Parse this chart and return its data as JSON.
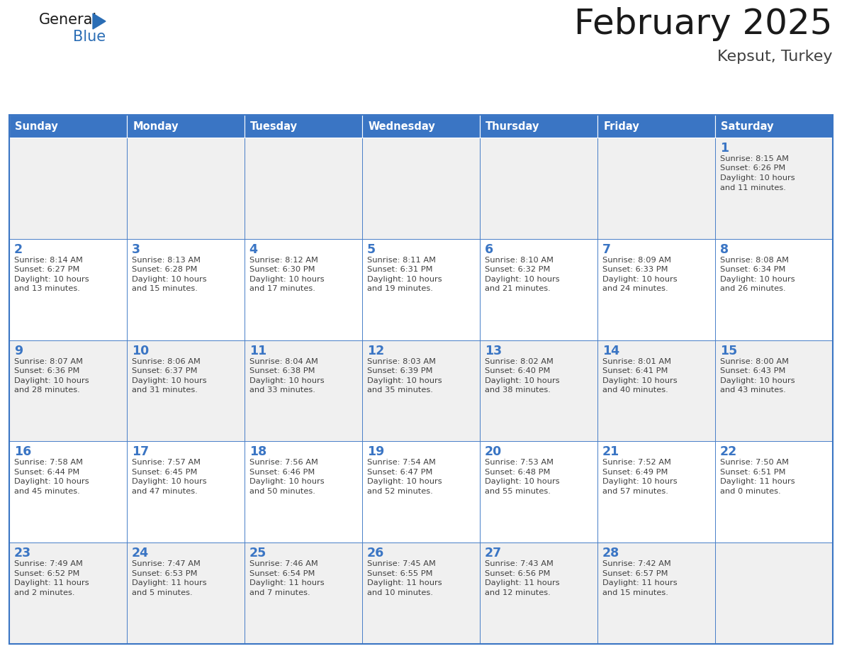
{
  "title": "February 2025",
  "subtitle": "Kepsut, Turkey",
  "days_of_week": [
    "Sunday",
    "Monday",
    "Tuesday",
    "Wednesday",
    "Thursday",
    "Friday",
    "Saturday"
  ],
  "header_bg": "#3A75C4",
  "header_text": "#FFFFFF",
  "cell_bg_odd": "#F0F0F0",
  "cell_bg_even": "#FFFFFF",
  "border_color": "#3A75C4",
  "day_number_color": "#3A75C4",
  "cell_text_color": "#404040",
  "title_color": "#1A1A1A",
  "subtitle_color": "#404040",
  "logo_general_color": "#1A1A1A",
  "logo_blue_color": "#2A6DB5",
  "calendar_data": {
    "1": {
      "sunrise": "8:15 AM",
      "sunset": "6:26 PM",
      "daylight_h": "10 hours",
      "daylight_m": "and 11 minutes."
    },
    "2": {
      "sunrise": "8:14 AM",
      "sunset": "6:27 PM",
      "daylight_h": "10 hours",
      "daylight_m": "and 13 minutes."
    },
    "3": {
      "sunrise": "8:13 AM",
      "sunset": "6:28 PM",
      "daylight_h": "10 hours",
      "daylight_m": "and 15 minutes."
    },
    "4": {
      "sunrise": "8:12 AM",
      "sunset": "6:30 PM",
      "daylight_h": "10 hours",
      "daylight_m": "and 17 minutes."
    },
    "5": {
      "sunrise": "8:11 AM",
      "sunset": "6:31 PM",
      "daylight_h": "10 hours",
      "daylight_m": "and 19 minutes."
    },
    "6": {
      "sunrise": "8:10 AM",
      "sunset": "6:32 PM",
      "daylight_h": "10 hours",
      "daylight_m": "and 21 minutes."
    },
    "7": {
      "sunrise": "8:09 AM",
      "sunset": "6:33 PM",
      "daylight_h": "10 hours",
      "daylight_m": "and 24 minutes."
    },
    "8": {
      "sunrise": "8:08 AM",
      "sunset": "6:34 PM",
      "daylight_h": "10 hours",
      "daylight_m": "and 26 minutes."
    },
    "9": {
      "sunrise": "8:07 AM",
      "sunset": "6:36 PM",
      "daylight_h": "10 hours",
      "daylight_m": "and 28 minutes."
    },
    "10": {
      "sunrise": "8:06 AM",
      "sunset": "6:37 PM",
      "daylight_h": "10 hours",
      "daylight_m": "and 31 minutes."
    },
    "11": {
      "sunrise": "8:04 AM",
      "sunset": "6:38 PM",
      "daylight_h": "10 hours",
      "daylight_m": "and 33 minutes."
    },
    "12": {
      "sunrise": "8:03 AM",
      "sunset": "6:39 PM",
      "daylight_h": "10 hours",
      "daylight_m": "and 35 minutes."
    },
    "13": {
      "sunrise": "8:02 AM",
      "sunset": "6:40 PM",
      "daylight_h": "10 hours",
      "daylight_m": "and 38 minutes."
    },
    "14": {
      "sunrise": "8:01 AM",
      "sunset": "6:41 PM",
      "daylight_h": "10 hours",
      "daylight_m": "and 40 minutes."
    },
    "15": {
      "sunrise": "8:00 AM",
      "sunset": "6:43 PM",
      "daylight_h": "10 hours",
      "daylight_m": "and 43 minutes."
    },
    "16": {
      "sunrise": "7:58 AM",
      "sunset": "6:44 PM",
      "daylight_h": "10 hours",
      "daylight_m": "and 45 minutes."
    },
    "17": {
      "sunrise": "7:57 AM",
      "sunset": "6:45 PM",
      "daylight_h": "10 hours",
      "daylight_m": "and 47 minutes."
    },
    "18": {
      "sunrise": "7:56 AM",
      "sunset": "6:46 PM",
      "daylight_h": "10 hours",
      "daylight_m": "and 50 minutes."
    },
    "19": {
      "sunrise": "7:54 AM",
      "sunset": "6:47 PM",
      "daylight_h": "10 hours",
      "daylight_m": "and 52 minutes."
    },
    "20": {
      "sunrise": "7:53 AM",
      "sunset": "6:48 PM",
      "daylight_h": "10 hours",
      "daylight_m": "and 55 minutes."
    },
    "21": {
      "sunrise": "7:52 AM",
      "sunset": "6:49 PM",
      "daylight_h": "10 hours",
      "daylight_m": "and 57 minutes."
    },
    "22": {
      "sunrise": "7:50 AM",
      "sunset": "6:51 PM",
      "daylight_h": "11 hours",
      "daylight_m": "and 0 minutes."
    },
    "23": {
      "sunrise": "7:49 AM",
      "sunset": "6:52 PM",
      "daylight_h": "11 hours",
      "daylight_m": "and 2 minutes."
    },
    "24": {
      "sunrise": "7:47 AM",
      "sunset": "6:53 PM",
      "daylight_h": "11 hours",
      "daylight_m": "and 5 minutes."
    },
    "25": {
      "sunrise": "7:46 AM",
      "sunset": "6:54 PM",
      "daylight_h": "11 hours",
      "daylight_m": "and 7 minutes."
    },
    "26": {
      "sunrise": "7:45 AM",
      "sunset": "6:55 PM",
      "daylight_h": "11 hours",
      "daylight_m": "and 10 minutes."
    },
    "27": {
      "sunrise": "7:43 AM",
      "sunset": "6:56 PM",
      "daylight_h": "11 hours",
      "daylight_m": "and 12 minutes."
    },
    "28": {
      "sunrise": "7:42 AM",
      "sunset": "6:57 PM",
      "daylight_h": "11 hours",
      "daylight_m": "and 15 minutes."
    }
  },
  "week_layout": [
    [
      null,
      null,
      null,
      null,
      null,
      null,
      1
    ],
    [
      2,
      3,
      4,
      5,
      6,
      7,
      8
    ],
    [
      9,
      10,
      11,
      12,
      13,
      14,
      15
    ],
    [
      16,
      17,
      18,
      19,
      20,
      21,
      22
    ],
    [
      23,
      24,
      25,
      26,
      27,
      28,
      null
    ]
  ]
}
